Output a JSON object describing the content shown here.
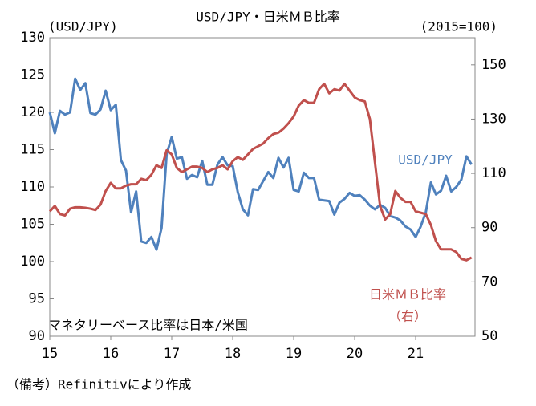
{
  "chart_data": {
    "type": "line",
    "title": "USD/JPY・日米ＭＢ比率",
    "y_label": "(USD/JPY)",
    "y2_label": "(2015=100)",
    "annotations": [
      "マネタリーベース比率は日本/米国",
      "USD/JPY",
      "日米ＭＢ比率",
      "（右）"
    ],
    "footnote": "（備考）Refinitivにより作成",
    "categories": [
      "15",
      null,
      null,
      null,
      null,
      null,
      null,
      null,
      null,
      null,
      null,
      null,
      "16",
      null,
      null,
      null,
      null,
      null,
      null,
      null,
      null,
      null,
      null,
      null,
      "17",
      null,
      null,
      null,
      null,
      null,
      null,
      null,
      null,
      null,
      null,
      null,
      "18",
      null,
      null,
      null,
      null,
      null,
      null,
      null,
      null,
      null,
      null,
      null,
      "19",
      null,
      null,
      null,
      null,
      null,
      null,
      null,
      null,
      null,
      null,
      null,
      "20",
      null,
      null,
      null,
      null,
      null,
      null,
      null,
      null,
      null,
      null,
      null,
      "21",
      null,
      null,
      null,
      null,
      null,
      null,
      null,
      null,
      null,
      null,
      null
    ],
    "series": [
      {
        "name": "USD/JPY",
        "color": "#4f81bd",
        "axis": "y",
        "values": [
          120.0,
          117.2,
          120.2,
          119.7,
          120.0,
          124.5,
          123.0,
          123.9,
          119.9,
          119.7,
          120.4,
          122.9,
          120.3,
          121.0,
          113.6,
          112.2,
          106.6,
          109.4,
          102.7,
          102.5,
          103.3,
          101.6,
          104.5,
          114.4,
          116.7,
          113.8,
          114.0,
          111.1,
          111.6,
          111.3,
          113.5,
          110.3,
          110.3,
          113.0,
          114.0,
          112.9,
          112.8,
          109.3,
          107.0,
          106.2,
          109.7,
          109.6,
          110.8,
          112.0,
          111.2,
          113.9,
          112.6,
          113.9,
          109.6,
          109.4,
          111.9,
          111.2,
          111.2,
          108.3,
          108.2,
          108.1,
          106.3,
          107.9,
          108.4,
          109.2,
          108.8,
          108.9,
          108.3,
          107.5,
          107.0,
          107.6,
          107.2,
          106.1,
          105.9,
          105.5,
          104.7,
          104.3,
          103.3,
          104.7,
          106.6,
          110.6,
          109.0,
          109.5,
          111.5,
          109.4,
          110.0,
          111.0,
          114.1,
          113.0
        ]
      },
      {
        "name": "日米ＭＢ比率",
        "color": "#c0504d",
        "axis": "y2",
        "values": [
          96,
          98,
          95,
          94.5,
          97,
          97.5,
          97.5,
          97.3,
          97,
          96.5,
          98.5,
          103.5,
          106.5,
          104.5,
          104.5,
          105.5,
          106,
          106,
          108,
          107.5,
          109.5,
          113,
          112,
          118.5,
          117,
          112,
          110.5,
          111.5,
          112.5,
          112.5,
          112,
          110.5,
          111.5,
          112,
          113,
          111.5,
          114.5,
          116,
          115,
          117,
          119,
          120,
          121,
          123,
          124.5,
          125,
          126.5,
          128.5,
          131,
          135,
          137,
          136,
          136,
          141,
          143,
          139.5,
          141,
          140.5,
          143,
          140.5,
          138,
          137,
          136.5,
          130,
          114,
          98,
          93,
          95,
          103.5,
          101,
          99.5,
          99.5,
          96,
          95.5,
          95,
          91,
          85,
          82,
          82,
          82,
          81,
          78.5,
          78,
          79
        ]
      }
    ],
    "ylim": [
      90,
      130
    ],
    "yticks": [
      90,
      95,
      100,
      105,
      110,
      115,
      120,
      125,
      130
    ],
    "y2lim": [
      50,
      160
    ],
    "y2ticks": [
      50,
      70,
      90,
      110,
      130,
      150
    ],
    "grid": false
  }
}
